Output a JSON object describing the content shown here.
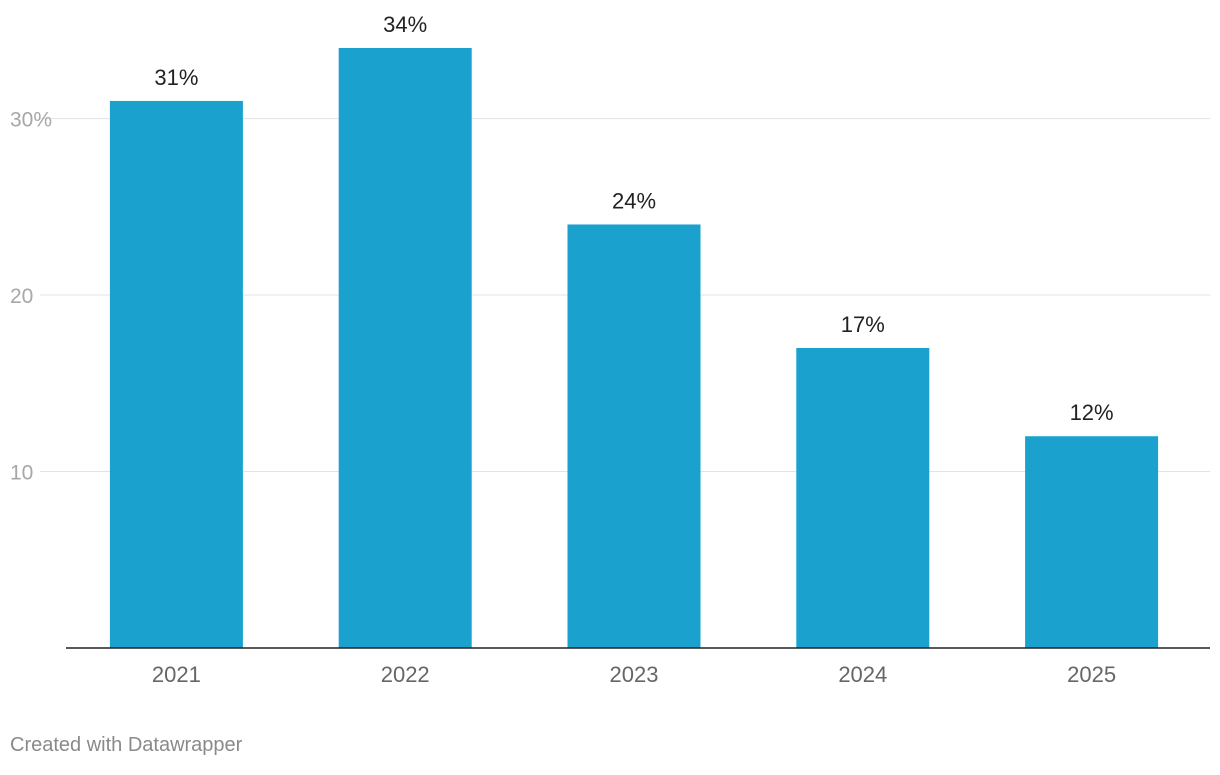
{
  "chart_data": {
    "type": "bar",
    "categories": [
      "2021",
      "2022",
      "2023",
      "2024",
      "2025"
    ],
    "values": [
      31,
      34,
      24,
      17,
      12
    ],
    "data_labels": [
      "31%",
      "34%",
      "24%",
      "17%",
      "12%"
    ],
    "title": "",
    "xlabel": "",
    "ylabel": "",
    "ylim": [
      0,
      34
    ],
    "yticks": [
      10,
      20,
      30
    ],
    "ytick_labels": [
      "10",
      "20",
      "30%"
    ],
    "grid": true,
    "colors": {
      "bar": "#1aa1ce",
      "grid": "#e3e3e3",
      "axis": "#222222"
    }
  },
  "footer": {
    "credit": "Created with Datawrapper"
  }
}
